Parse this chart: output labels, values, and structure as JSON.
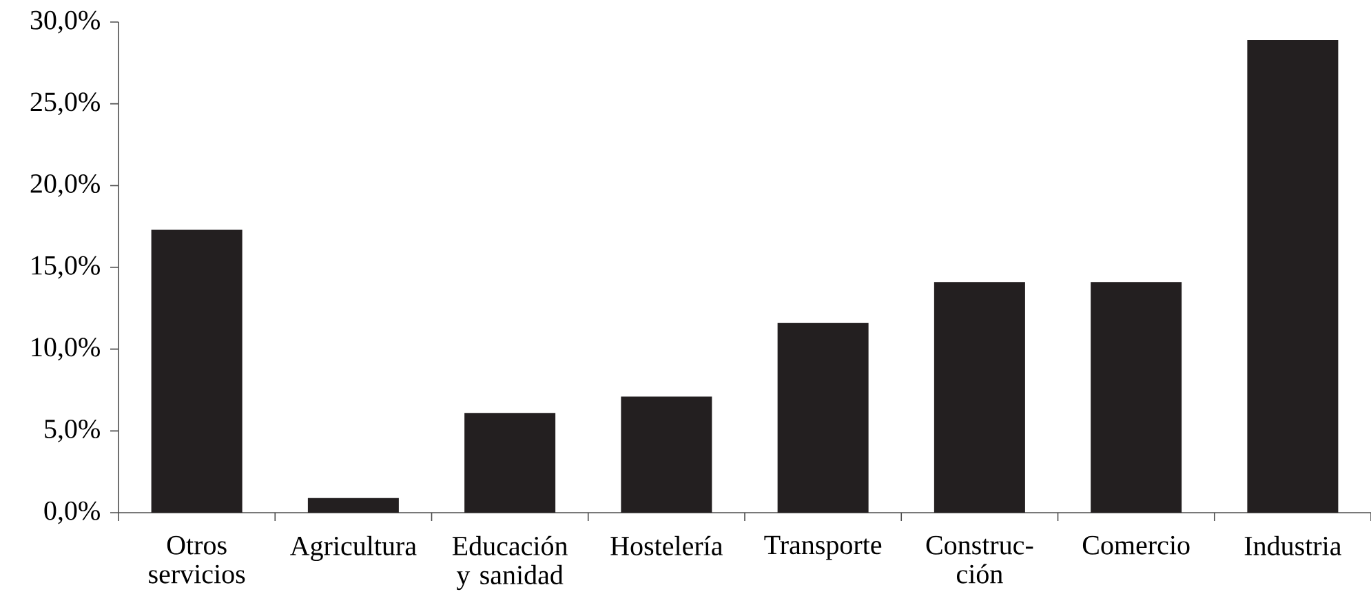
{
  "chart_data": {
    "type": "bar",
    "categories": [
      "Otros servicios",
      "Agricultura",
      "Educación y sanidad",
      "Hostelería",
      "Transporte",
      "Construc-ción",
      "Comercio",
      "Industria"
    ],
    "values": [
      17.3,
      0.9,
      6.1,
      7.1,
      11.6,
      14.1,
      14.1,
      28.9
    ],
    "color": "#231f20",
    "ylim": [
      0,
      30
    ],
    "yticks": [
      {
        "value": 0,
        "label": "0,0%"
      },
      {
        "value": 5,
        "label": "5,0%"
      },
      {
        "value": 10,
        "label": "10,0%"
      },
      {
        "value": 15,
        "label": "15,0%"
      },
      {
        "value": 20,
        "label": "20,0%"
      },
      {
        "value": 25,
        "label": "25,0%"
      },
      {
        "value": 30,
        "label": "30,0%"
      }
    ],
    "grid": false
  }
}
